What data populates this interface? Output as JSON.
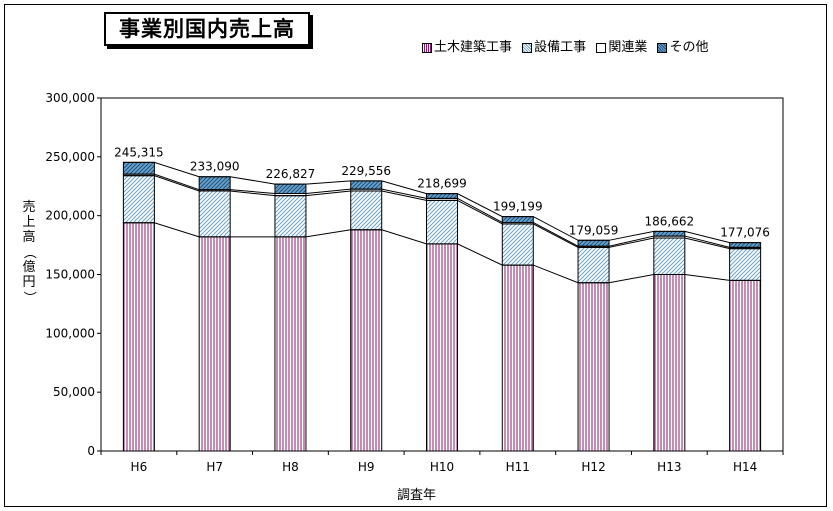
{
  "page": {
    "title": "事業別国内売上高",
    "legend": [
      {
        "label": "土木建築工事",
        "pattern": "vlines"
      },
      {
        "label": "設備工事",
        "pattern": "diag"
      },
      {
        "label": "関連業",
        "pattern": "white"
      },
      {
        "label": "その他",
        "pattern": "cross"
      }
    ],
    "ylabel": "売上高（億円）",
    "xlabel": "調査年"
  },
  "colors": {
    "vlines": "#8b1a6b",
    "diag": "#6aa3c9",
    "cross": "#3a78b0",
    "border": "#000000"
  },
  "chart_data": {
    "type": "bar",
    "stacked": true,
    "title": "事業別国内売上高",
    "xlabel": "調査年",
    "ylabel": "売上高（億円）",
    "ylim": [
      0,
      300000
    ],
    "yticks": [
      "0",
      "50,000",
      "100,000",
      "150,000",
      "200,000",
      "250,000",
      "300,000"
    ],
    "categories": [
      "H6",
      "H7",
      "H8",
      "H9",
      "H10",
      "H11",
      "H12",
      "H13",
      "H14"
    ],
    "series": [
      {
        "name": "土木建築工事",
        "values": [
          194000,
          182000,
          182000,
          188000,
          176000,
          158000,
          143000,
          150000,
          145000
        ]
      },
      {
        "name": "設備工事",
        "values": [
          40000,
          39000,
          35000,
          33000,
          37000,
          35000,
          30000,
          31000,
          27000
        ]
      },
      {
        "name": "関連業",
        "values": [
          1315,
          1090,
          1827,
          1556,
          1699,
          1199,
          1059,
          1662,
          1076
        ]
      },
      {
        "name": "その他",
        "values": [
          10000,
          11000,
          8000,
          7000,
          4000,
          5000,
          5000,
          4000,
          4000
        ]
      }
    ],
    "totals": [
      "245,315",
      "233,090",
      "226,827",
      "229,556",
      "218,699",
      "199,199",
      "179,059",
      "186,662",
      "177,076"
    ],
    "grid": false,
    "legend_position": "top-right"
  }
}
